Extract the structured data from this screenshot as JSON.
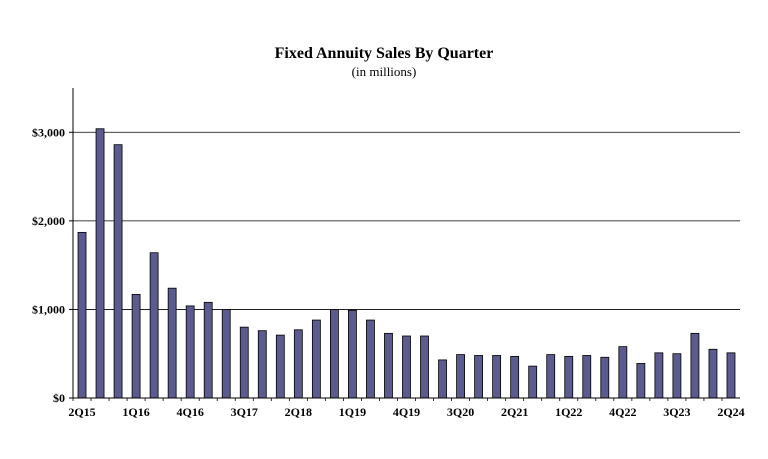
{
  "chart_data": {
    "type": "bar",
    "title": "Fixed Annuity Sales By Quarter",
    "subtitle": "(in millions)",
    "xlabel": "",
    "ylabel": "",
    "ylim": [
      0,
      3500
    ],
    "y_ticks": [
      0,
      1000,
      2000,
      3000
    ],
    "y_tick_labels": [
      "$0",
      "$1,000",
      "$2,000",
      "$3,000"
    ],
    "grid": true,
    "bar_color": "#5b5b8f",
    "categories": [
      "2Q15",
      "3Q15",
      "4Q15",
      "1Q16",
      "2Q16",
      "3Q16",
      "4Q16",
      "1Q17",
      "2Q17",
      "3Q17",
      "4Q17",
      "1Q18",
      "2Q18",
      "3Q18",
      "4Q18",
      "1Q19",
      "2Q19",
      "3Q19",
      "4Q19",
      "1Q20",
      "2Q20",
      "3Q20",
      "4Q20",
      "1Q21",
      "2Q21",
      "3Q21",
      "4Q21",
      "1Q22",
      "2Q22",
      "3Q22",
      "4Q22",
      "1Q23",
      "2Q23",
      "3Q23",
      "4Q23",
      "1Q24",
      "2Q24"
    ],
    "labeled_categories": [
      "2Q15",
      "1Q16",
      "4Q16",
      "3Q17",
      "2Q18",
      "1Q19",
      "4Q19",
      "3Q20",
      "2Q21",
      "1Q22",
      "4Q22",
      "3Q23",
      "2Q24"
    ],
    "values": [
      1870,
      3040,
      2860,
      1170,
      1640,
      1240,
      1040,
      1080,
      1000,
      800,
      760,
      710,
      770,
      880,
      1000,
      990,
      880,
      730,
      700,
      700,
      430,
      490,
      480,
      480,
      470,
      360,
      490,
      470,
      480,
      460,
      580,
      390,
      510,
      500,
      730,
      550,
      510
    ]
  }
}
